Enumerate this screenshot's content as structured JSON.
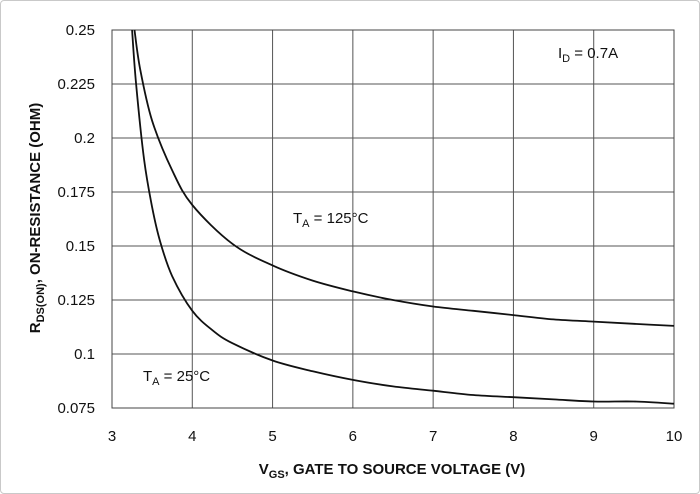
{
  "chart_data": {
    "type": "line",
    "xlabel": {
      "main": "V",
      "sub": "GS",
      "rest": ", GATE TO SOURCE VOLTAGE (V)"
    },
    "ylabel": {
      "main": "R",
      "sub": "DS(ON)",
      "rest": ", ON-RESISTANCE (OHM)"
    },
    "xlim": [
      3,
      10
    ],
    "ylim": [
      0.075,
      0.25
    ],
    "xticks": [
      "3",
      "4",
      "5",
      "6",
      "7",
      "8",
      "9",
      "10"
    ],
    "yticks": [
      "0.25",
      "0.225",
      "0.2",
      "0.175",
      "0.15",
      "0.125",
      "0.1",
      "0.075"
    ],
    "grid": true,
    "series": [
      {
        "name": {
          "main": "T",
          "sub": "A",
          "rest": " = 25°C"
        },
        "x": [
          3.25,
          3.3,
          3.4,
          3.5,
          3.6,
          3.75,
          4.0,
          4.25,
          4.5,
          5.0,
          5.5,
          6.0,
          6.5,
          7.0,
          7.5,
          8.0,
          8.5,
          9.0,
          9.5,
          10.0
        ],
        "y": [
          0.25,
          0.225,
          0.19,
          0.168,
          0.152,
          0.136,
          0.12,
          0.111,
          0.105,
          0.097,
          0.092,
          0.088,
          0.085,
          0.083,
          0.081,
          0.08,
          0.079,
          0.078,
          0.078,
          0.077
        ]
      },
      {
        "name": {
          "main": "T",
          "sub": "A",
          "rest": " = 125°C"
        },
        "x": [
          3.28,
          3.35,
          3.5,
          3.75,
          4.0,
          4.5,
          5.0,
          5.5,
          6.0,
          6.5,
          7.0,
          7.5,
          8.0,
          8.5,
          9.0,
          9.5,
          10.0
        ],
        "y": [
          0.25,
          0.232,
          0.208,
          0.185,
          0.169,
          0.151,
          0.141,
          0.134,
          0.129,
          0.125,
          0.122,
          0.12,
          0.118,
          0.116,
          0.115,
          0.114,
          0.113
        ]
      }
    ],
    "annotations": [
      {
        "main": "I",
        "sub": "D",
        "rest": " = 0.7A"
      }
    ]
  }
}
